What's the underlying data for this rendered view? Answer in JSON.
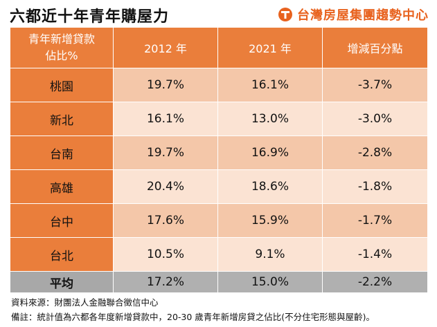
{
  "header": {
    "title": "六都近十年青年購屋力",
    "brand": "台灣房屋集團趨勢中心"
  },
  "table": {
    "header_line1": "青年新增貸款",
    "header_line2": "佔比%",
    "columns": [
      "2012 年",
      "2021 年",
      "增減百分點"
    ],
    "rows": [
      {
        "city": "桃園",
        "y2012": "19.7%",
        "y2021": "16.1%",
        "change": "-3.7%"
      },
      {
        "city": "新北",
        "y2012": "16.1%",
        "y2021": "13.0%",
        "change": "-3.0%"
      },
      {
        "city": "台南",
        "y2012": "19.7%",
        "y2021": "16.9%",
        "change": "-2.8%"
      },
      {
        "city": "高雄",
        "y2012": "20.4%",
        "y2021": "18.6%",
        "change": "-1.8%"
      },
      {
        "city": "台中",
        "y2012": "17.6%",
        "y2021": "15.9%",
        "change": "-1.7%"
      },
      {
        "city": "台北",
        "y2012": "10.5%",
        "y2021": "9.1%",
        "change": "-1.4%"
      }
    ],
    "average": {
      "city": "平均",
      "y2012": "17.2%",
      "y2021": "15.0%",
      "change": "-2.2%"
    }
  },
  "notes": {
    "source": "資料來源：財團法人金融聯合徵信中心",
    "remark": "備註：統計值為六都各年度新增貸款中，20-30 歲青年新增房貸之佔比(不分住宅形態與屋齡)。"
  },
  "colors": {
    "header_orange": "#ea7e3b",
    "row_dark": "#f4c7a9",
    "row_light": "#fbe3d3",
    "average_gray": "#b0b0b0",
    "brand_orange": "#e8621e"
  }
}
